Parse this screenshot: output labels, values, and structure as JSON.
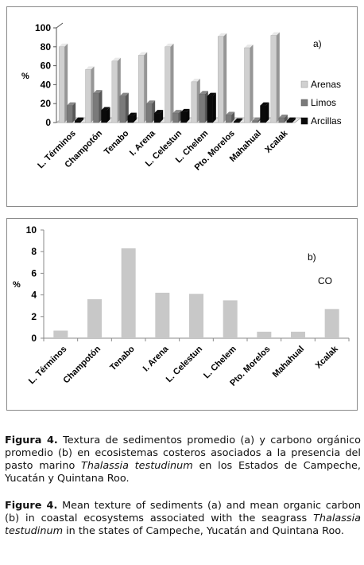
{
  "chart_data": [
    {
      "type": "bar",
      "panel_label": "a)",
      "ylabel": "%",
      "ylim": [
        0,
        100
      ],
      "yticks": [
        0,
        20,
        40,
        60,
        80,
        100
      ],
      "grid": false,
      "legend_position": "right",
      "categories": [
        "L. Términos",
        "Champotón",
        "Tenabo",
        "I. Arena",
        "L. Celestun",
        "L. Chelem",
        "Pto. Morelos",
        "Mahahual",
        "Xcalak"
      ],
      "series": [
        {
          "name": "Arenas",
          "color": "#d0d0d0",
          "values": [
            80,
            56,
            65,
            71,
            80,
            43,
            91,
            79,
            92
          ]
        },
        {
          "name": "Limos",
          "color": "#7a7a7a",
          "values": [
            18,
            31,
            28,
            20,
            10,
            30,
            8,
            2,
            5
          ]
        },
        {
          "name": "Arcillas",
          "color": "#0a0a0a",
          "values": [
            2,
            13,
            7,
            10,
            11,
            28,
            1,
            18,
            2
          ]
        }
      ]
    },
    {
      "type": "bar",
      "panel_label": "b)",
      "series_label": "CO",
      "ylabel": "%",
      "ylim": [
        0,
        10
      ],
      "yticks": [
        0,
        2,
        4,
        6,
        8,
        10
      ],
      "grid": false,
      "categories": [
        "L. Términos",
        "Champotón",
        "Tenabo",
        "I. Arena",
        "L. Celestun",
        "L. Chelem",
        "Pto. Morelos",
        "Mahahual",
        "Xcalak"
      ],
      "series": [
        {
          "color": "#c8c8c8",
          "values": [
            0.7,
            3.6,
            8.3,
            4.2,
            4.1,
            3.5,
            0.6,
            0.6,
            2.7
          ]
        }
      ]
    }
  ],
  "caption_es": {
    "label": "Figura 4.",
    "text_1": " Textura de sedimentos promedio (a) y carbono orgánico promedio (b) en ecosistemas costeros asociados a la presencia del pasto marino ",
    "species": "Thalassia testudinum",
    "text_2": " en los Estados de Campeche, Yucatán y Quintana Roo."
  },
  "caption_en": {
    "label": "Figure 4.",
    "text_1": " Mean texture of sediments (a) and mean organic carbon (b) in coastal ecosystems associated with the seagrass ",
    "species": "Thalassia testudinum",
    "text_2": " in the states of Campeche, Yucatán and Quintana Roo."
  }
}
